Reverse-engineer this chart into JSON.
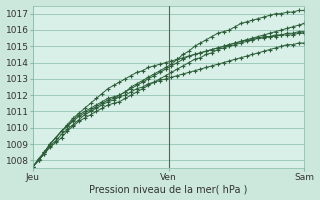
{
  "title": "",
  "xlabel": "Pression niveau de la mer( hPa )",
  "ylabel": "",
  "bg_color": "#cce8dc",
  "plot_bg_color": "#d8f0e8",
  "grid_color": "#88bbaa",
  "line_color": "#2d5e3a",
  "marker_color": "#2d5e3a",
  "ylim": [
    1007.5,
    1017.5
  ],
  "xlim": [
    0,
    48
  ],
  "yticks": [
    1008,
    1009,
    1010,
    1011,
    1012,
    1013,
    1014,
    1015,
    1016,
    1017
  ],
  "xtick_positions": [
    0,
    24,
    48
  ],
  "xtick_labels": [
    "Jeu",
    "Ven",
    "Sam"
  ],
  "vlines": [
    24
  ],
  "series": [
    [
      1007.6,
      1008.0,
      1008.5,
      1009.0,
      1009.4,
      1009.8,
      1010.1,
      1010.5,
      1010.8,
      1011.0,
      1011.2,
      1011.4,
      1011.6,
      1011.8,
      1011.9,
      1012.0,
      1012.2,
      1012.5,
      1012.7,
      1012.9,
      1013.1,
      1013.3,
      1013.5,
      1013.7,
      1013.9,
      1014.2,
      1014.5,
      1014.7,
      1015.0,
      1015.2,
      1015.4,
      1015.6,
      1015.8,
      1015.9,
      1016.0,
      1016.2,
      1016.4,
      1016.5,
      1016.6,
      1016.7,
      1016.8,
      1016.9,
      1017.0,
      1017.0,
      1017.1,
      1017.1,
      1017.2,
      1017.2
    ],
    [
      1007.6,
      1008.0,
      1008.4,
      1008.8,
      1009.1,
      1009.4,
      1009.8,
      1010.1,
      1010.4,
      1010.6,
      1010.8,
      1011.0,
      1011.2,
      1011.4,
      1011.5,
      1011.6,
      1011.8,
      1012.0,
      1012.2,
      1012.4,
      1012.6,
      1012.8,
      1013.0,
      1013.2,
      1013.4,
      1013.6,
      1013.8,
      1014.0,
      1014.2,
      1014.3,
      1014.5,
      1014.6,
      1014.8,
      1014.9,
      1015.0,
      1015.1,
      1015.2,
      1015.3,
      1015.4,
      1015.5,
      1015.6,
      1015.6,
      1015.7,
      1015.7,
      1015.8,
      1015.8,
      1015.9,
      1015.9
    ],
    [
      1007.6,
      1008.0,
      1008.4,
      1008.9,
      1009.2,
      1009.6,
      1009.9,
      1010.2,
      1010.5,
      1010.8,
      1011.0,
      1011.2,
      1011.4,
      1011.6,
      1011.7,
      1011.9,
      1012.0,
      1012.2,
      1012.4,
      1012.5,
      1012.7,
      1012.8,
      1012.9,
      1013.0,
      1013.1,
      1013.2,
      1013.3,
      1013.4,
      1013.5,
      1013.6,
      1013.7,
      1013.8,
      1013.9,
      1014.0,
      1014.1,
      1014.2,
      1014.3,
      1014.4,
      1014.5,
      1014.6,
      1014.7,
      1014.8,
      1014.9,
      1015.0,
      1015.1,
      1015.1,
      1015.2,
      1015.2
    ],
    [
      1007.6,
      1008.1,
      1008.5,
      1009.0,
      1009.4,
      1009.8,
      1010.1,
      1010.4,
      1010.7,
      1010.9,
      1011.1,
      1011.3,
      1011.5,
      1011.7,
      1011.8,
      1012.0,
      1012.2,
      1012.4,
      1012.6,
      1012.8,
      1013.0,
      1013.2,
      1013.4,
      1013.6,
      1013.8,
      1014.0,
      1014.2,
      1014.4,
      1014.5,
      1014.6,
      1014.7,
      1014.8,
      1014.9,
      1015.0,
      1015.1,
      1015.2,
      1015.3,
      1015.4,
      1015.4,
      1015.5,
      1015.5,
      1015.6,
      1015.6,
      1015.7,
      1015.7,
      1015.7,
      1015.8,
      1015.8
    ],
    [
      1007.6,
      1008.0,
      1008.5,
      1009.0,
      1009.4,
      1009.8,
      1010.2,
      1010.6,
      1010.9,
      1011.2,
      1011.5,
      1011.8,
      1012.1,
      1012.4,
      1012.6,
      1012.8,
      1013.0,
      1013.2,
      1013.4,
      1013.5,
      1013.7,
      1013.8,
      1013.9,
      1014.0,
      1014.1,
      1014.2,
      1014.3,
      1014.4,
      1014.5,
      1014.6,
      1014.7,
      1014.8,
      1014.9,
      1015.0,
      1015.1,
      1015.2,
      1015.3,
      1015.4,
      1015.5,
      1015.6,
      1015.7,
      1015.8,
      1015.9,
      1016.0,
      1016.1,
      1016.2,
      1016.3,
      1016.4
    ]
  ]
}
